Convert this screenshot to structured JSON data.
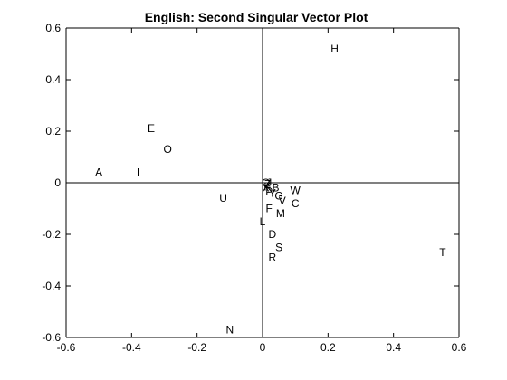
{
  "chart_data": {
    "type": "scatter",
    "title": "English: Second Singular Vector Plot",
    "xlabel": "",
    "ylabel": "",
    "xlim": [
      -0.6,
      0.6
    ],
    "ylim": [
      -0.6,
      0.6
    ],
    "x_ticks": [
      "-0.6",
      "-0.4",
      "-0.2",
      "0",
      "0.2",
      "0.4",
      "0.6"
    ],
    "y_ticks": [
      "0.6",
      "0.4",
      "0.2",
      "0",
      "-0.2",
      "-0.4",
      "-0.6"
    ],
    "x_tick_values": [
      -0.6,
      -0.4,
      -0.2,
      0,
      0.2,
      0.4,
      0.6
    ],
    "y_tick_values": [
      0.6,
      0.4,
      0.2,
      0,
      -0.2,
      -0.4,
      -0.6
    ],
    "grid": false,
    "axis_lines_through_origin": true,
    "marker": "text-label",
    "points": [
      {
        "label": "H",
        "x": 0.22,
        "y": 0.52
      },
      {
        "label": "E",
        "x": -0.34,
        "y": 0.21
      },
      {
        "label": "O",
        "x": -0.29,
        "y": 0.13
      },
      {
        "label": "A",
        "x": -0.5,
        "y": 0.04
      },
      {
        "label": "I",
        "x": -0.38,
        "y": 0.04
      },
      {
        "label": "Q",
        "x": 0.01,
        "y": 0.0
      },
      {
        "label": "J",
        "x": 0.02,
        "y": 0.0
      },
      {
        "label": "Z",
        "x": 0.015,
        "y": -0.005
      },
      {
        "label": "X",
        "x": 0.01,
        "y": -0.02
      },
      {
        "label": "K",
        "x": 0.015,
        "y": -0.015
      },
      {
        "label": "B",
        "x": 0.04,
        "y": -0.02
      },
      {
        "label": "P",
        "x": 0.02,
        "y": -0.035
      },
      {
        "label": "Y",
        "x": 0.03,
        "y": -0.04
      },
      {
        "label": "G",
        "x": 0.05,
        "y": -0.05
      },
      {
        "label": "W",
        "x": 0.1,
        "y": -0.03
      },
      {
        "label": "V",
        "x": 0.06,
        "y": -0.07
      },
      {
        "label": "C",
        "x": 0.1,
        "y": -0.08
      },
      {
        "label": "U",
        "x": -0.12,
        "y": -0.06
      },
      {
        "label": "F",
        "x": 0.02,
        "y": -0.1
      },
      {
        "label": "M",
        "x": 0.055,
        "y": -0.12
      },
      {
        "label": "L",
        "x": 0.0,
        "y": -0.15
      },
      {
        "label": "D",
        "x": 0.03,
        "y": -0.2
      },
      {
        "label": "S",
        "x": 0.05,
        "y": -0.25
      },
      {
        "label": "R",
        "x": 0.03,
        "y": -0.29
      },
      {
        "label": "T",
        "x": 0.55,
        "y": -0.27
      },
      {
        "label": "N",
        "x": -0.1,
        "y": -0.57
      }
    ]
  }
}
